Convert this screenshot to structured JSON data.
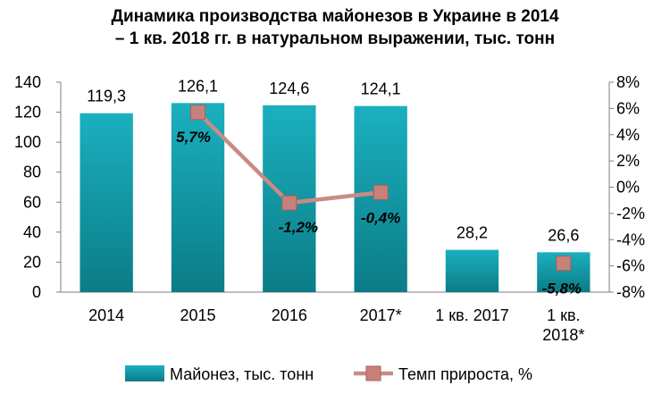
{
  "chart_data": {
    "type": "bar",
    "title": "Динамика производства майонезов  в Украине в 2014 – 1 кв. 2018 гг. в натуральном  выражении, тыс. тонн",
    "title_lines": [
      "Динамика производства майонезов  в Украине в 2014",
      "– 1 кв. 2018 гг. в натуральном  выражении, тыс. тонн"
    ],
    "categories": [
      [
        "2014"
      ],
      [
        "2015"
      ],
      [
        "2016"
      ],
      [
        "2017*"
      ],
      [
        "1 кв. 2017"
      ],
      [
        "1 кв.",
        "2018*"
      ]
    ],
    "series": [
      {
        "name": "Майонез, тыс. тонн",
        "type": "bar",
        "axis": "left",
        "color": "#1a9fad",
        "values": [
          119.3,
          126.1,
          124.6,
          124.1,
          28.2,
          26.6
        ],
        "labels": [
          "119,3",
          "126,1",
          "124,6",
          "124,1",
          "28,2",
          "26,6"
        ]
      },
      {
        "name": "Темп прироста, %",
        "type": "line",
        "axis": "right",
        "color": "#c98b85",
        "marker_color": "#c8807a",
        "segments": [
          [
            1,
            2,
            3
          ],
          [
            5
          ]
        ],
        "values": [
          null,
          5.7,
          -1.2,
          -0.4,
          null,
          -5.8
        ],
        "labels": [
          null,
          "5,7%",
          "-1,2%",
          "-0,4%",
          null,
          "-5,8%"
        ]
      }
    ],
    "y_left": {
      "min": 0,
      "max": 140,
      "ticks": [
        "0",
        "20",
        "40",
        "60",
        "80",
        "100",
        "120",
        "140"
      ]
    },
    "y_right": {
      "min": -8,
      "max": 8,
      "ticks": [
        "-8%",
        "-6%",
        "-4%",
        "-2%",
        "0%",
        "2%",
        "4%",
        "6%",
        "8%"
      ]
    },
    "legend_position": "bottom"
  }
}
